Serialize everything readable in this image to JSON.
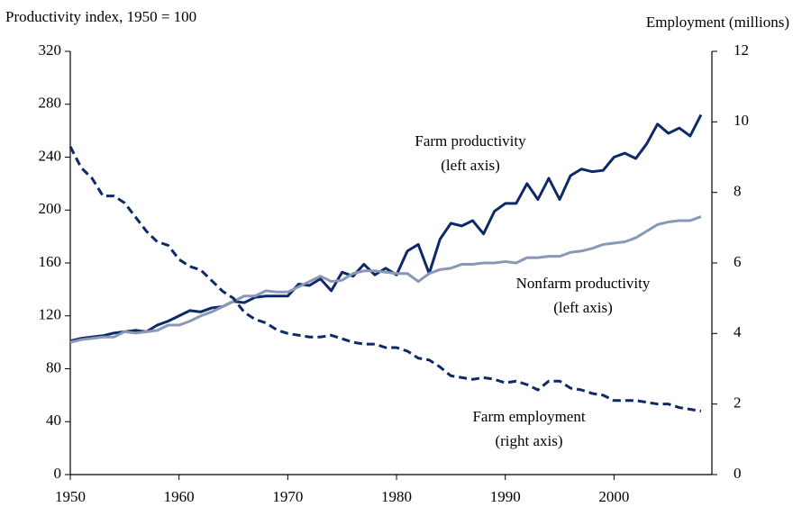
{
  "chart_data": {
    "type": "line",
    "y_label": "Productivity index, 1950 = 100",
    "y2_label": "Employment (millions)",
    "x": [
      1950,
      1951,
      1952,
      1953,
      1954,
      1955,
      1956,
      1957,
      1958,
      1959,
      1960,
      1961,
      1962,
      1963,
      1964,
      1965,
      1966,
      1967,
      1968,
      1969,
      1970,
      1971,
      1972,
      1973,
      1974,
      1975,
      1976,
      1977,
      1978,
      1979,
      1980,
      1981,
      1982,
      1983,
      1984,
      1985,
      1986,
      1987,
      1988,
      1989,
      1990,
      1991,
      1992,
      1993,
      1994,
      1995,
      1996,
      1997,
      1998,
      1999,
      2000,
      2001,
      2002,
      2003,
      2004,
      2005,
      2006,
      2007,
      2008
    ],
    "xlim": [
      1950,
      2009
    ],
    "xticks": [
      1950,
      1960,
      1970,
      1980,
      1990,
      2000
    ],
    "ylim": [
      0,
      320
    ],
    "yticks": [
      0,
      40,
      80,
      120,
      160,
      200,
      240,
      280,
      320
    ],
    "y2lim": [
      0,
      12
    ],
    "y2ticks": [
      0,
      2,
      4,
      6,
      8,
      10,
      12
    ],
    "series": [
      {
        "name": "Farm productivity",
        "color": "#0d2a66",
        "dashed": false,
        "values": [
          101,
          103,
          104,
          105,
          107,
          108,
          109,
          108,
          113,
          116,
          120,
          124,
          123,
          126,
          127,
          131,
          130,
          134,
          135,
          135,
          135,
          144,
          143,
          148,
          139,
          153,
          150,
          159,
          151,
          156,
          151,
          169,
          174,
          152,
          178,
          190,
          188,
          192,
          182,
          199,
          205,
          205,
          220,
          208,
          224,
          208,
          226,
          231,
          229,
          230,
          240,
          243,
          239,
          250,
          265,
          258,
          262,
          256,
          272
        ]
      },
      {
        "name": "Nonfarm productivity",
        "color": "#8a98b8",
        "dashed": false,
        "values": [
          100,
          102,
          103,
          104,
          104,
          108,
          107,
          108,
          109,
          113,
          113,
          116,
          120,
          123,
          127,
          131,
          135,
          135,
          139,
          138,
          138,
          142,
          146,
          150,
          146,
          147,
          152,
          154,
          154,
          153,
          152,
          152,
          146,
          152,
          155,
          156,
          159,
          159,
          160,
          160,
          161,
          160,
          164,
          164,
          165,
          165,
          168,
          169,
          171,
          174,
          175,
          176,
          179,
          184,
          189,
          191,
          192,
          192,
          195
        ]
      },
      {
        "name": "Farm employment",
        "color": "#0d2a66",
        "dashed": true,
        "axis": "y2",
        "values": [
          9.3,
          8.7,
          8.4,
          7.9,
          7.9,
          7.7,
          7.3,
          6.9,
          6.6,
          6.5,
          6.1,
          5.9,
          5.8,
          5.5,
          5.2,
          5.0,
          4.6,
          4.4,
          4.3,
          4.1,
          4.0,
          3.95,
          3.9,
          3.9,
          3.95,
          3.85,
          3.75,
          3.7,
          3.7,
          3.6,
          3.6,
          3.5,
          3.3,
          3.25,
          3.05,
          2.8,
          2.75,
          2.7,
          2.75,
          2.7,
          2.6,
          2.65,
          2.55,
          2.4,
          2.65,
          2.65,
          2.45,
          2.4,
          2.3,
          2.25,
          2.1,
          2.1,
          2.1,
          2.05,
          2.0,
          2.0,
          1.9,
          1.85,
          1.8
        ]
      }
    ],
    "annotations": [
      {
        "lines": [
          "Farm productivity",
          "(left axis)"
        ]
      },
      {
        "lines": [
          "Nonfarm productivity",
          "(left axis)"
        ]
      },
      {
        "lines": [
          "Farm employment",
          "(right axis)"
        ]
      }
    ]
  }
}
